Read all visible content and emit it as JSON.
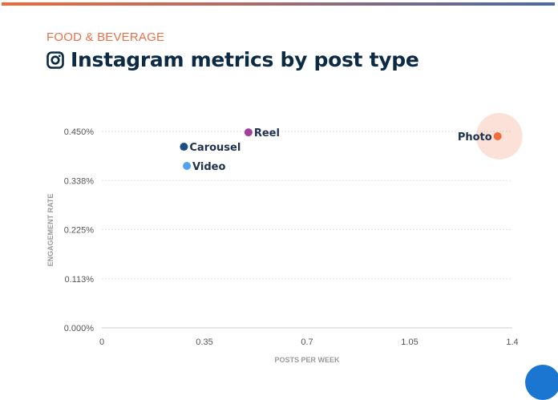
{
  "header": {
    "category": "FOOD & BEVERAGE",
    "title": "Instagram metrics by post type",
    "icon": "instagram-icon"
  },
  "colors": {
    "accent": "#e8704a",
    "title": "#0c2a44",
    "carousel": "#1e4f82",
    "reel": "#a23f9e",
    "video": "#4fa3f0",
    "photo": "#f26b3a"
  },
  "chart_data": {
    "type": "scatter",
    "title": "Instagram metrics by post type",
    "xlabel": "POSTS PER WEEK",
    "ylabel": "ENGAGEMENT RATE",
    "xlim": [
      0,
      1.4
    ],
    "ylim": [
      0,
      0.45
    ],
    "xticks": [
      "0",
      "0.35",
      "0.7",
      "1.05",
      "1.4"
    ],
    "xtick_values": [
      0,
      0.35,
      0.7,
      1.05,
      1.4
    ],
    "yticks": [
      "0.000%",
      "0.113%",
      "0.225%",
      "0.338%",
      "0.450%"
    ],
    "ytick_values": [
      0,
      0.1125,
      0.225,
      0.3375,
      0.45
    ],
    "grid": true,
    "points": [
      {
        "label": "Carousel",
        "x": 0.28,
        "y": 0.415,
        "color": "#1e4f82",
        "label_side": "right"
      },
      {
        "label": "Reel",
        "x": 0.5,
        "y": 0.448,
        "color": "#a23f9e",
        "label_side": "right"
      },
      {
        "label": "Video",
        "x": 0.29,
        "y": 0.371,
        "color": "#4fa3f0",
        "label_side": "right"
      },
      {
        "label": "Photo",
        "x": 1.35,
        "y": 0.439,
        "color": "#f26b3a",
        "label_side": "left",
        "highlight": true
      }
    ]
  }
}
